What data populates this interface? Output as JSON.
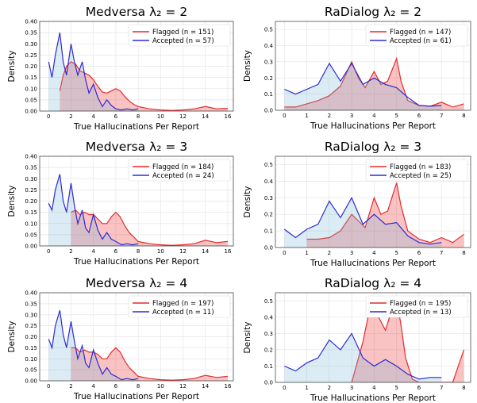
{
  "chart_data": [
    {
      "type": "area",
      "title": "Medversa λ₂ = 2",
      "xlabel": "True Hallucinations Per Report",
      "ylabel": "Density",
      "xlim": [
        -0.8,
        16.5
      ],
      "ylim": [
        0,
        0.4
      ],
      "xticks": [
        0,
        2,
        4,
        6,
        8,
        10,
        12,
        14,
        16
      ],
      "yticks": [
        0.0,
        0.05,
        0.1,
        0.15,
        0.2,
        0.25,
        0.3,
        0.35,
        0.4
      ],
      "ytick_labels": [
        "0.00",
        "0.05",
        "0.10",
        "0.15",
        "0.20",
        "0.25",
        "0.30",
        "0.35",
        "0.40"
      ],
      "grid": true,
      "legend": "top-right",
      "threshold": 1,
      "series": [
        {
          "name": "Flagged (n = 151)",
          "color": "#e8292b",
          "x": [
            1.0,
            1.3,
            1.6,
            2.0,
            2.4,
            2.8,
            3.2,
            3.6,
            4.0,
            4.4,
            4.8,
            5.2,
            5.6,
            6.0,
            6.4,
            6.8,
            7.2,
            7.6,
            8.0,
            9.0,
            10.0,
            11.0,
            12.0,
            13.0,
            14.0,
            15.0,
            16.0
          ],
          "y": [
            0.09,
            0.16,
            0.2,
            0.22,
            0.21,
            0.18,
            0.17,
            0.16,
            0.14,
            0.11,
            0.085,
            0.08,
            0.09,
            0.1,
            0.09,
            0.065,
            0.045,
            0.03,
            0.02,
            0.01,
            0.005,
            0.003,
            0.005,
            0.01,
            0.02,
            0.01,
            0.012
          ]
        },
        {
          "name": "Accepted (n = 57)",
          "color": "#2b2bd6",
          "x": [
            0.0,
            0.3,
            0.6,
            1.0,
            1.3,
            1.6,
            2.0,
            2.3,
            2.6,
            3.0,
            3.3,
            3.6,
            4.0,
            4.4,
            4.8,
            5.2,
            5.6,
            6.0,
            6.5,
            7.0,
            7.5,
            8.0
          ],
          "y": [
            0.22,
            0.15,
            0.25,
            0.35,
            0.22,
            0.16,
            0.3,
            0.22,
            0.16,
            0.22,
            0.14,
            0.08,
            0.12,
            0.06,
            0.02,
            0.05,
            0.025,
            0.01,
            0.005,
            0.01,
            0.005,
            0.01
          ]
        }
      ]
    },
    {
      "type": "area",
      "title": "RaDialog λ₂ = 2",
      "xlabel": "True Hallucinations Per Report",
      "ylabel": "Density",
      "xlim": [
        -0.4,
        8.3
      ],
      "ylim": [
        0,
        0.55
      ],
      "xticks": [
        0,
        1,
        2,
        3,
        4,
        5,
        6,
        7,
        8
      ],
      "yticks": [
        0.0,
        0.1,
        0.2,
        0.3,
        0.4,
        0.5
      ],
      "ytick_labels": [
        "0.0",
        "0.1",
        "0.2",
        "0.3",
        "0.4",
        "0.5"
      ],
      "grid": true,
      "legend": "top-right",
      "threshold": 3,
      "series": [
        {
          "name": "Flagged (n = 147)",
          "color": "#e8292b",
          "x": [
            0.0,
            0.5,
            1.0,
            1.5,
            2.0,
            2.5,
            3.0,
            3.3,
            3.6,
            4.0,
            4.3,
            4.6,
            5.0,
            5.2,
            5.5,
            6.0,
            6.5,
            7.0,
            7.5,
            8.0
          ],
          "y": [
            0.02,
            0.02,
            0.04,
            0.06,
            0.09,
            0.15,
            0.3,
            0.2,
            0.14,
            0.24,
            0.16,
            0.18,
            0.32,
            0.18,
            0.06,
            0.03,
            0.025,
            0.05,
            0.02,
            0.04
          ]
        },
        {
          "name": "Accepted (n = 61)",
          "color": "#2b2bd6",
          "x": [
            0.0,
            0.5,
            1.0,
            1.5,
            2.0,
            2.5,
            3.0,
            3.5,
            4.0,
            4.5,
            5.0,
            5.5,
            6.0,
            6.5,
            7.0
          ],
          "y": [
            0.13,
            0.1,
            0.13,
            0.16,
            0.29,
            0.18,
            0.29,
            0.16,
            0.2,
            0.16,
            0.14,
            0.08,
            0.03,
            0.025,
            0.03
          ]
        }
      ]
    },
    {
      "type": "area",
      "title": "Medversa λ₂ = 3",
      "xlabel": "True Hallucinations Per Report",
      "ylabel": "Density",
      "xlim": [
        -0.8,
        16.5
      ],
      "ylim": [
        0,
        0.4
      ],
      "xticks": [
        0,
        2,
        4,
        6,
        8,
        10,
        12,
        14,
        16
      ],
      "yticks": [
        0.0,
        0.05,
        0.1,
        0.15,
        0.2,
        0.25,
        0.3,
        0.35,
        0.4
      ],
      "ytick_labels": [
        "0.00",
        "0.05",
        "0.10",
        "0.15",
        "0.20",
        "0.25",
        "0.30",
        "0.35",
        "0.40"
      ],
      "grid": true,
      "legend": "top-right",
      "threshold": 2,
      "series": [
        {
          "name": "Flagged (n = 184)",
          "color": "#e8292b",
          "x": [
            2.0,
            2.4,
            2.8,
            3.2,
            3.6,
            4.0,
            4.4,
            4.8,
            5.2,
            5.6,
            6.0,
            6.4,
            6.8,
            7.2,
            7.6,
            8.0,
            9.0,
            10.0,
            11.0,
            12.0,
            13.0,
            14.0,
            15.0,
            16.0
          ],
          "y": [
            0.15,
            0.16,
            0.14,
            0.15,
            0.14,
            0.14,
            0.12,
            0.1,
            0.1,
            0.13,
            0.15,
            0.13,
            0.09,
            0.06,
            0.04,
            0.02,
            0.01,
            0.005,
            0.003,
            0.005,
            0.01,
            0.025,
            0.015,
            0.02
          ]
        },
        {
          "name": "Accepted (n = 24)",
          "color": "#2b2bd6",
          "x": [
            0.0,
            0.3,
            0.6,
            1.0,
            1.3,
            1.6,
            2.0,
            2.3,
            2.6,
            3.0,
            3.3,
            3.6,
            4.0,
            4.4,
            4.8,
            5.2,
            5.6,
            6.0,
            6.5,
            7.0,
            7.5,
            8.0
          ],
          "y": [
            0.19,
            0.16,
            0.25,
            0.32,
            0.2,
            0.15,
            0.28,
            0.18,
            0.1,
            0.16,
            0.08,
            0.06,
            0.14,
            0.07,
            0.03,
            0.06,
            0.03,
            0.02,
            0.005,
            0.01,
            0.005,
            0.01
          ]
        }
      ]
    },
    {
      "type": "area",
      "title": "RaDialog λ₂ = 3",
      "xlabel": "True Hallucinations Per Report",
      "ylabel": "Density",
      "xlim": [
        -0.4,
        8.3
      ],
      "ylim": [
        0,
        0.55
      ],
      "xticks": [
        0,
        1,
        2,
        3,
        4,
        5,
        6,
        7,
        8
      ],
      "yticks": [
        0.0,
        0.1,
        0.2,
        0.3,
        0.4,
        0.5
      ],
      "ytick_labels": [
        "0.0",
        "0.1",
        "0.2",
        "0.3",
        "0.4",
        "0.5"
      ],
      "grid": true,
      "legend": "top-right",
      "threshold": 3,
      "series": [
        {
          "name": "Flagged (n = 183)",
          "color": "#e8292b",
          "x": [
            1.0,
            1.5,
            2.0,
            2.5,
            3.0,
            3.3,
            3.6,
            4.0,
            4.3,
            4.6,
            5.0,
            5.2,
            5.5,
            6.0,
            6.5,
            7.0,
            7.5,
            8.0
          ],
          "y": [
            0.05,
            0.05,
            0.06,
            0.1,
            0.2,
            0.16,
            0.12,
            0.3,
            0.2,
            0.22,
            0.39,
            0.25,
            0.1,
            0.05,
            0.03,
            0.06,
            0.03,
            0.08
          ]
        },
        {
          "name": "Accepted (n = 25)",
          "color": "#2b2bd6",
          "x": [
            0.0,
            0.5,
            1.0,
            1.5,
            2.0,
            2.5,
            3.0,
            3.5,
            4.0,
            4.5,
            5.0,
            5.5,
            6.0,
            6.5,
            7.0
          ],
          "y": [
            0.11,
            0.06,
            0.11,
            0.14,
            0.28,
            0.18,
            0.3,
            0.14,
            0.2,
            0.14,
            0.15,
            0.07,
            0.03,
            0.02,
            0.03
          ]
        }
      ]
    },
    {
      "type": "area",
      "title": "Medversa λ₂ = 4",
      "xlabel": "True Hallucinations Per Report",
      "ylabel": "Density",
      "xlim": [
        -0.8,
        16.5
      ],
      "ylim": [
        0,
        0.4
      ],
      "xticks": [
        0,
        2,
        4,
        6,
        8,
        10,
        12,
        14,
        16
      ],
      "yticks": [
        0.0,
        0.05,
        0.1,
        0.15,
        0.2,
        0.25,
        0.3,
        0.35,
        0.4
      ],
      "ytick_labels": [
        "0.00",
        "0.05",
        "0.10",
        "0.15",
        "0.20",
        "0.25",
        "0.30",
        "0.35",
        "0.40"
      ],
      "grid": true,
      "legend": "top-right",
      "threshold": 2,
      "series": [
        {
          "name": "Flagged (n = 197)",
          "color": "#e8292b",
          "x": [
            2.0,
            2.4,
            2.8,
            3.2,
            3.6,
            4.0,
            4.4,
            4.8,
            5.2,
            5.6,
            6.0,
            6.4,
            6.8,
            7.2,
            7.6,
            8.0,
            9.0,
            10.0,
            11.0,
            12.0,
            13.0,
            14.0,
            15.0,
            16.0
          ],
          "y": [
            0.15,
            0.15,
            0.13,
            0.14,
            0.13,
            0.13,
            0.12,
            0.1,
            0.1,
            0.13,
            0.15,
            0.13,
            0.09,
            0.06,
            0.04,
            0.02,
            0.01,
            0.005,
            0.003,
            0.005,
            0.01,
            0.025,
            0.015,
            0.02
          ]
        },
        {
          "name": "Accepted (n = 11)",
          "color": "#2b2bd6",
          "x": [
            0.0,
            0.3,
            0.6,
            1.0,
            1.3,
            1.6,
            2.0,
            2.3,
            2.6,
            3.0,
            3.3,
            3.6,
            4.0,
            4.4,
            4.8,
            5.2,
            5.6,
            6.0,
            6.5,
            7.0,
            7.5,
            8.0
          ],
          "y": [
            0.19,
            0.15,
            0.25,
            0.32,
            0.21,
            0.15,
            0.27,
            0.18,
            0.1,
            0.16,
            0.08,
            0.06,
            0.14,
            0.08,
            0.03,
            0.06,
            0.03,
            0.02,
            0.005,
            0.01,
            0.005,
            0.01
          ]
        }
      ]
    },
    {
      "type": "area",
      "title": "RaDialog λ₂ = 4",
      "xlabel": "True Hallucinations Per Report",
      "ylabel": "Density",
      "xlim": [
        -0.4,
        8.3
      ],
      "ylim": [
        0,
        0.55
      ],
      "xticks": [
        0,
        1,
        2,
        3,
        4,
        5,
        6,
        7,
        8
      ],
      "yticks": [
        0.0,
        0.1,
        0.2,
        0.3,
        0.4,
        0.5
      ],
      "ytick_labels": [
        "0.0",
        "0.1",
        "0.2",
        "0.3",
        "0.4",
        "0.5"
      ],
      "grid": true,
      "legend": "top-right",
      "threshold": 3,
      "series": [
        {
          "name": "Flagged (n = 195)",
          "color": "#e8292b",
          "x": [
            3.0,
            3.2,
            3.5,
            3.8,
            4.0,
            4.2,
            4.5,
            4.8,
            5.0,
            5.2,
            5.4,
            5.7,
            6.0,
            6.5,
            7.0,
            7.5,
            7.7,
            8.0
          ],
          "y": [
            0.0,
            0.1,
            0.25,
            0.45,
            0.51,
            0.4,
            0.32,
            0.45,
            0.51,
            0.35,
            0.15,
            0.02,
            0.0,
            0.0,
            0.0,
            0.0,
            0.08,
            0.2
          ]
        },
        {
          "name": "Accepted (n = 13)",
          "color": "#2b2bd6",
          "x": [
            0.0,
            0.5,
            1.0,
            1.5,
            2.0,
            2.5,
            3.0,
            3.5,
            4.0,
            4.5,
            5.0,
            5.5,
            6.0,
            6.5,
            7.0
          ],
          "y": [
            0.1,
            0.07,
            0.12,
            0.15,
            0.26,
            0.2,
            0.3,
            0.15,
            0.1,
            0.14,
            0.1,
            0.05,
            0.02,
            0.03,
            0.03
          ]
        }
      ]
    }
  ]
}
